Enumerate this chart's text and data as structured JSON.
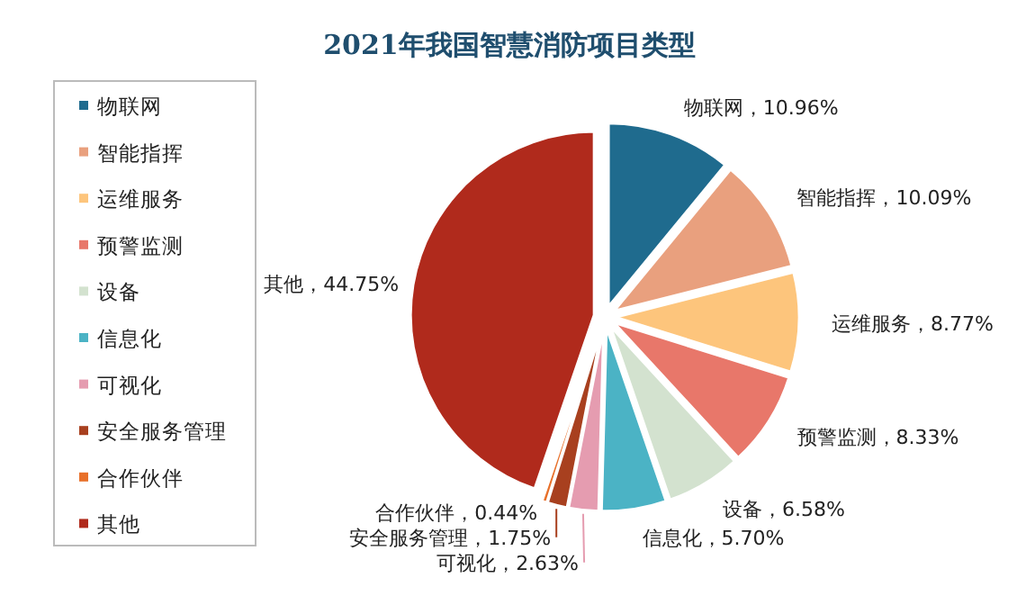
{
  "chart_data": {
    "type": "pie",
    "title": "2021年我国智慧消防项目类型",
    "categories": [
      "物联网",
      "智能指挥",
      "运维服务",
      "预警监测",
      "设备",
      "信息化",
      "可视化",
      "安全服务管理",
      "合作伙伴",
      "其他"
    ],
    "values": [
      10.96,
      10.09,
      8.77,
      8.33,
      6.58,
      5.7,
      2.63,
      1.75,
      0.44,
      44.75
    ],
    "value_labels": [
      "物联网，10.96%",
      "智能指挥，10.09%",
      "运维服务，8.77%",
      "预警监测，8.33%",
      "设备，6.58%",
      "信息化，5.70%",
      "可视化，2.63%",
      "安全服务管理，1.75%",
      "合作伙伴，0.44%",
      "其他，44.75%"
    ],
    "colors": [
      "#1f6b8e",
      "#e9a07e",
      "#fdc57c",
      "#e8776a",
      "#d3e2cf",
      "#4bb3c5",
      "#e59cb0",
      "#a8401f",
      "#e8702a",
      "#b02a1c"
    ],
    "legend": "left"
  }
}
